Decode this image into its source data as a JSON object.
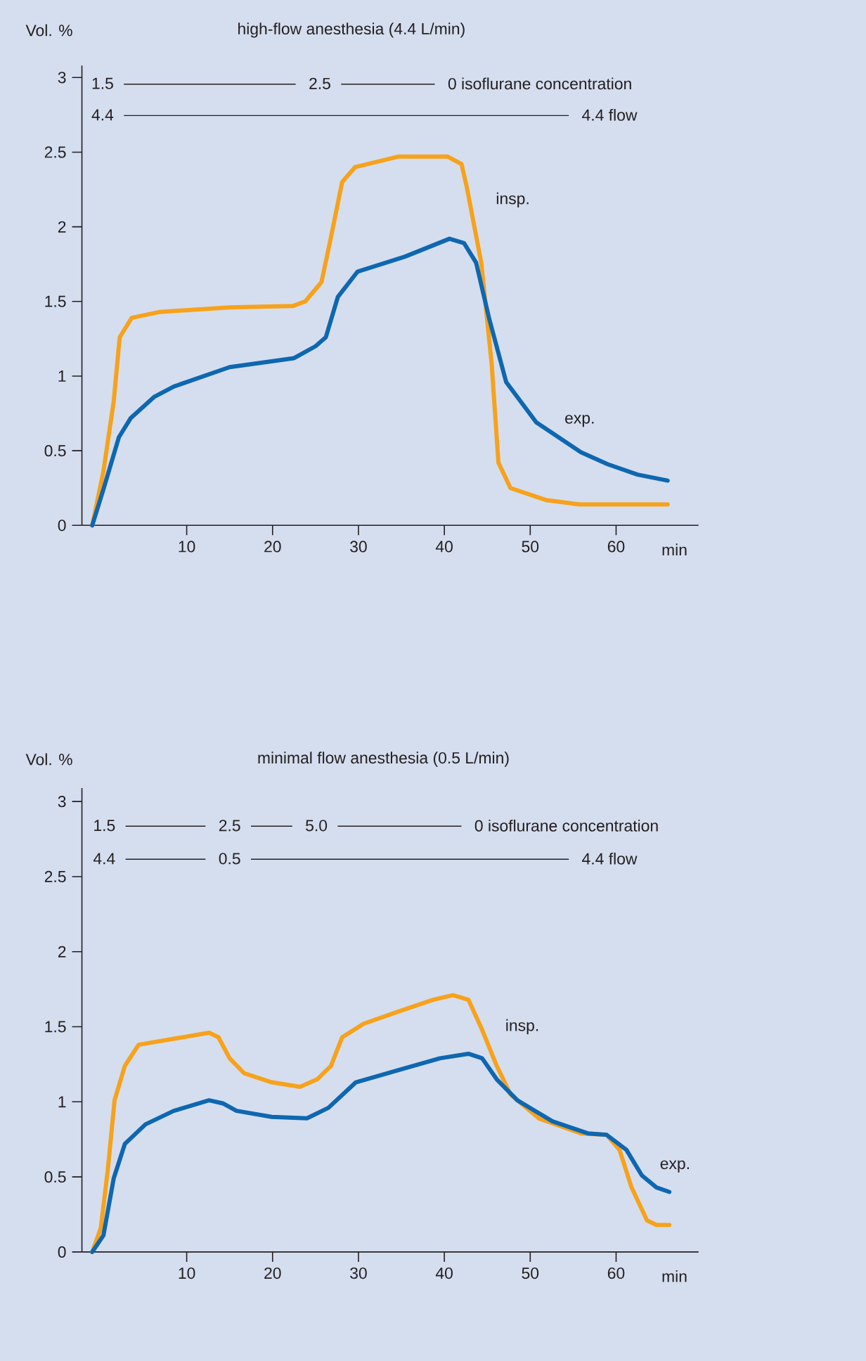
{
  "chart_data": [
    {
      "type": "line",
      "title": "high-flow anesthesia (4.4 L/min)",
      "ylabel": "Vol. %",
      "xlabel": "min",
      "xlim": [
        -2.2,
        69.6
      ],
      "ylim": [
        0,
        3.08
      ],
      "xticks": [
        10,
        20,
        30,
        40,
        50,
        60
      ],
      "yticks": [
        0,
        0.5,
        1,
        1.5,
        2,
        2.5,
        3
      ],
      "marker": "none",
      "line_style": "solid",
      "series": [
        {
          "name": "insp.",
          "color": "#f7a21b",
          "x": [
            -1.0,
            0.3,
            1.5,
            2.2,
            3.6,
            6.9,
            15.0,
            22.4,
            23.8,
            25.7,
            26.8,
            28.1,
            29.6,
            34.6,
            40.4,
            42.0,
            42.6,
            44.3,
            45.5,
            46.3,
            47.7,
            51.8,
            55.7,
            66.0
          ],
          "values": [
            0,
            0.36,
            0.83,
            1.26,
            1.39,
            1.43,
            1.46,
            1.47,
            1.5,
            1.63,
            1.93,
            2.3,
            2.4,
            2.47,
            2.47,
            2.42,
            2.27,
            1.76,
            1.09,
            0.42,
            0.25,
            0.17,
            0.14,
            0.14
          ]
        },
        {
          "name": "exp.",
          "color": "#0e67b0",
          "x": [
            -1.0,
            0.4,
            2.1,
            3.5,
            6.2,
            8.5,
            15.0,
            22.5,
            25.0,
            26.2,
            27.6,
            29.9,
            35.4,
            40.6,
            42.3,
            43.7,
            45.2,
            47.2,
            50.7,
            55.9,
            59.0,
            62.5,
            66.0
          ],
          "values": [
            0,
            0.26,
            0.59,
            0.72,
            0.86,
            0.93,
            1.06,
            1.12,
            1.2,
            1.26,
            1.53,
            1.7,
            1.8,
            1.92,
            1.89,
            1.76,
            1.39,
            0.96,
            0.69,
            0.49,
            0.41,
            0.34,
            0.3
          ]
        }
      ],
      "annotations": [
        "1.5",
        "2.5",
        "0 isoflurane concentration",
        "4.4",
        "4.4 flow"
      ]
    },
    {
      "type": "line",
      "title": "minimal flow anesthesia (0.5 L/min)",
      "ylabel": "Vol. %",
      "xlabel": "min",
      "xlim": [
        -2.2,
        69.6
      ],
      "ylim": [
        0,
        3.09
      ],
      "xticks": [
        10,
        20,
        30,
        40,
        50,
        60
      ],
      "yticks": [
        0,
        0.5,
        1,
        1.5,
        2,
        2.5,
        3
      ],
      "marker": "none",
      "line_style": "solid",
      "series": [
        {
          "name": "insp.",
          "color": "#f7a21b",
          "x": [
            -1.0,
            0.0,
            0.8,
            1.6,
            2.8,
            4.4,
            8.5,
            12.6,
            13.7,
            15.0,
            16.7,
            19.9,
            23.2,
            25.2,
            26.8,
            28.1,
            30.6,
            34.6,
            38.7,
            41.0,
            42.8,
            44.4,
            46.1,
            47.7,
            51.0,
            55.9,
            58.9,
            60.4,
            61.8,
            63.6,
            64.7,
            66.2
          ],
          "values": [
            0,
            0.16,
            0.54,
            1.01,
            1.24,
            1.38,
            1.42,
            1.46,
            1.43,
            1.29,
            1.19,
            1.13,
            1.1,
            1.15,
            1.24,
            1.43,
            1.52,
            1.6,
            1.68,
            1.71,
            1.68,
            1.48,
            1.24,
            1.05,
            0.89,
            0.79,
            0.78,
            0.68,
            0.43,
            0.21,
            0.18,
            0.18
          ]
        },
        {
          "name": "exp.",
          "color": "#0e67b0",
          "x": [
            -1.0,
            0.3,
            1.5,
            2.8,
            5.2,
            8.5,
            12.6,
            14.2,
            15.8,
            19.9,
            24.0,
            26.5,
            29.7,
            34.6,
            39.5,
            42.8,
            44.4,
            46.1,
            48.5,
            52.6,
            56.7,
            58.9,
            61.2,
            63.0,
            64.7,
            66.2
          ],
          "values": [
            0,
            0.11,
            0.49,
            0.72,
            0.85,
            0.94,
            1.01,
            0.99,
            0.94,
            0.9,
            0.89,
            0.96,
            1.13,
            1.21,
            1.29,
            1.32,
            1.29,
            1.15,
            1.01,
            0.87,
            0.79,
            0.78,
            0.68,
            0.51,
            0.43,
            0.4
          ]
        }
      ],
      "annotations": [
        "1.5",
        "2.5",
        "5.0",
        "0 isoflurane concentration",
        "4.4",
        "0.5",
        "4.4 flow"
      ]
    }
  ]
}
